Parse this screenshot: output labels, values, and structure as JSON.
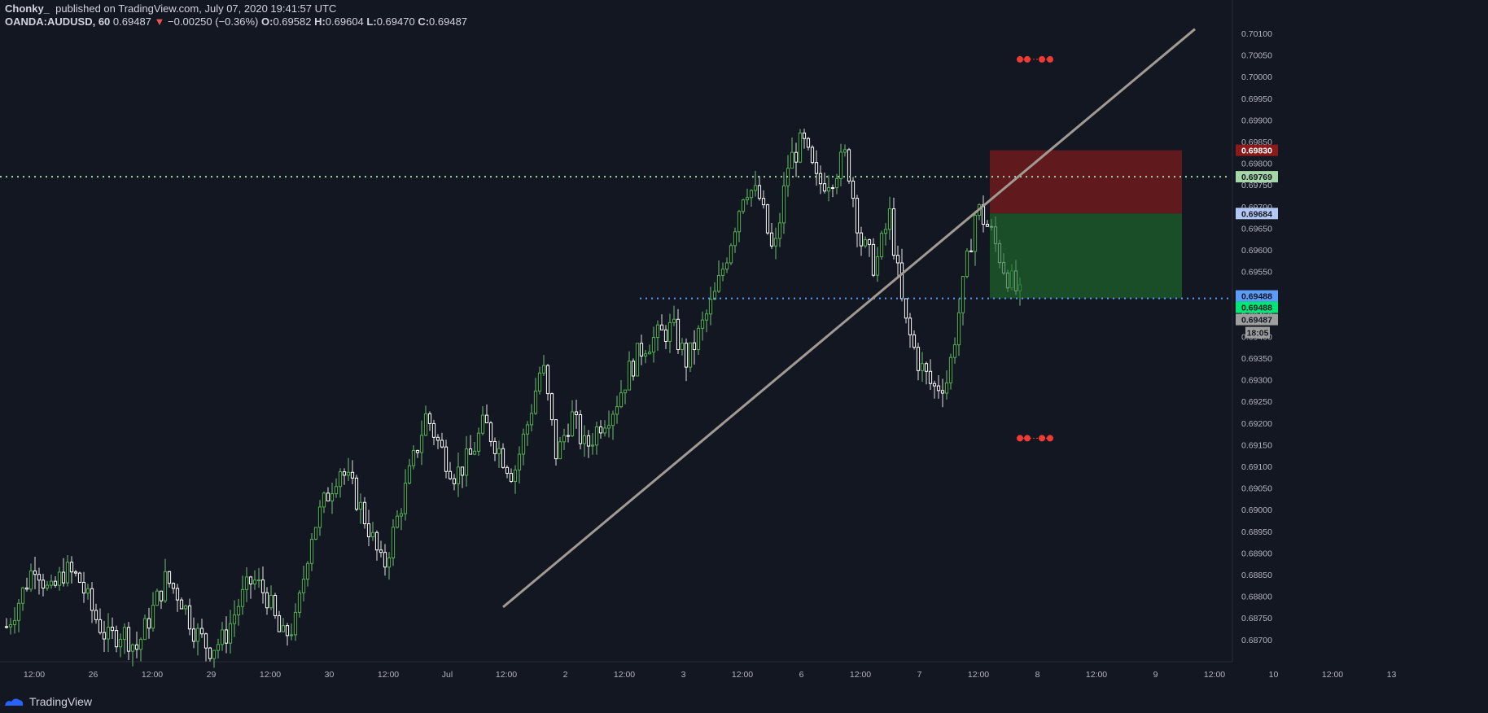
{
  "header": {
    "author": "Chonky_",
    "published": "published on TradingView.com, July 07, 2020 19:41:57 UTC",
    "symbol": "OANDA:AUDUSD, 60",
    "last": "0.69487",
    "arrow": "▼",
    "change": "−0.00250 (−0.36%)",
    "o_label": "O:",
    "o": "0.69582",
    "h_label": "H:",
    "h": "0.69604",
    "l_label": "L:",
    "l": "0.69470",
    "c_label": "C:",
    "c": "0.69487"
  },
  "footer": {
    "brand": "TradingView"
  },
  "colors": {
    "bg": "#131722",
    "up": "#4caf50",
    "down": "#ffffff",
    "grid": "#2a2e39",
    "stop": "#8b1a1a",
    "target": "#1e5e2a"
  },
  "chart_data": {
    "type": "candlestick",
    "symbol": "OANDA:AUDUSD",
    "interval": "60",
    "ylim": [
      0.6867,
      0.7011
    ],
    "y_ticks": [
      "0.70100",
      "0.70050",
      "0.70000",
      "0.69950",
      "0.69900",
      "0.69850",
      "0.69800",
      "0.69750",
      "0.69700",
      "0.69650",
      "0.69600",
      "0.69550",
      "0.69500",
      "0.69450",
      "0.69400",
      "0.69350",
      "0.69300",
      "0.69250",
      "0.69200",
      "0.69150",
      "0.69100",
      "0.69050",
      "0.69000",
      "0.68950",
      "0.68900",
      "0.68850",
      "0.68800",
      "0.68750",
      "0.68700"
    ],
    "x_ticks": [
      "12:00",
      "26",
      "12:00",
      "29",
      "12:00",
      "30",
      "12:00",
      "Jul",
      "12:00",
      "2",
      "12:00",
      "3",
      "12:00",
      "6",
      "12:00",
      "7",
      "12:00",
      "8",
      "12:00",
      "9",
      "12:00",
      "10",
      "12:00",
      "13"
    ],
    "path_hint": [
      0.6873,
      0.688,
      0.6888,
      0.688,
      0.6886,
      0.6884,
      0.6876,
      0.687,
      0.6872,
      0.6868,
      0.6876,
      0.6884,
      0.688,
      0.6872,
      0.6868,
      0.687,
      0.6878,
      0.6884,
      0.688,
      0.687,
      0.6874,
      0.6894,
      0.6902,
      0.691,
      0.6904,
      0.6896,
      0.6886,
      0.6898,
      0.691,
      0.6922,
      0.6914,
      0.6908,
      0.6912,
      0.692,
      0.6914,
      0.6908,
      0.692,
      0.6934,
      0.6912,
      0.6922,
      0.6914,
      0.692,
      0.6924,
      0.6932,
      0.6938,
      0.694,
      0.6942,
      0.6934,
      0.6942,
      0.695,
      0.6962,
      0.6975,
      0.6972,
      0.6958,
      0.698,
      0.6985,
      0.6975,
      0.6977,
      0.6982,
      0.6962,
      0.6956,
      0.6968,
      0.6944,
      0.6934,
      0.6928,
      0.693,
      0.695,
      0.697,
      0.6964,
      0.6955,
      0.6949
    ],
    "candle_count": 250,
    "price_labels": [
      {
        "value": "0.69830",
        "role": "stop"
      },
      {
        "value": "0.69769",
        "role": "level-green"
      },
      {
        "value": "0.69684",
        "role": "entry"
      },
      {
        "value": "0.69488",
        "role": "level-blue"
      },
      {
        "value": "0.69488",
        "role": "bid"
      },
      {
        "value": "0.69487",
        "role": "last"
      },
      {
        "value": "18:05",
        "role": "countdown"
      }
    ],
    "horizontal_lines": [
      {
        "price": 0.69769,
        "style": "dotted",
        "color": "#a5d6a7"
      },
      {
        "price": 0.69488,
        "style": "dotted",
        "color": "#5b9cf6"
      }
    ],
    "trendline": {
      "from": {
        "x_index": 122,
        "price": 0.68775
      },
      "to": {
        "x_index": 292,
        "price": 0.7011
      }
    },
    "position_tool": {
      "type": "short",
      "entry": 0.69684,
      "stop": 0.6983,
      "target": 0.69488
    }
  }
}
